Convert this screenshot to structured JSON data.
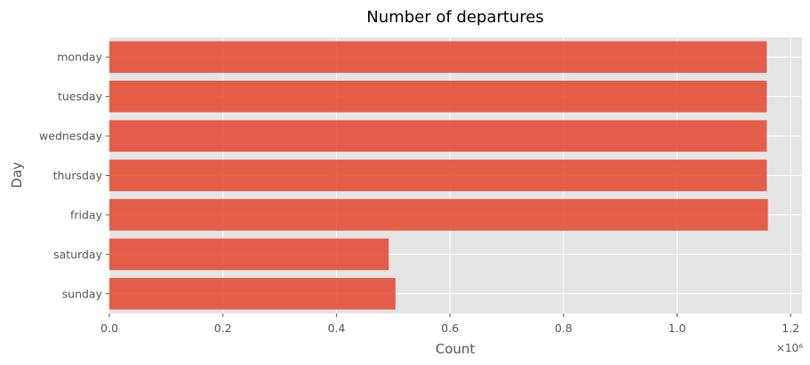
{
  "chart_data": {
    "type": "bar",
    "orientation": "horizontal",
    "title": "Number of departures",
    "xlabel": "Count",
    "ylabel": "Day",
    "x_offset_label": "×10⁶",
    "categories": [
      "monday",
      "tuesday",
      "wednesday",
      "thursday",
      "friday",
      "saturday",
      "sunday"
    ],
    "values": [
      1.158,
      1.158,
      1.158,
      1.158,
      1.16,
      0.492,
      0.504
    ],
    "value_multiplier": 1000000,
    "xlim": [
      0,
      1.22
    ],
    "xticks": [
      "0.0",
      "0.2",
      "0.4",
      "0.6",
      "0.8",
      "1.0",
      "1.2"
    ],
    "grid": true,
    "bar_color": "#E24A33",
    "background_color": "#E5E5E5",
    "grid_color": "#FFFFFF"
  }
}
